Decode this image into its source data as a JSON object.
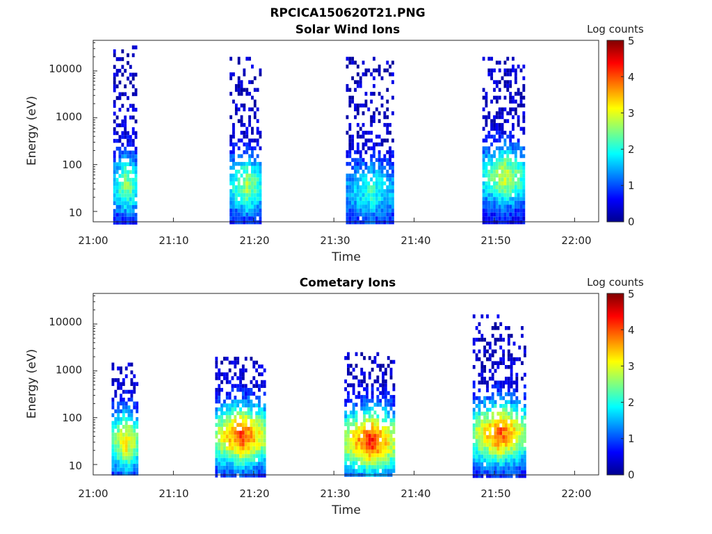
{
  "figure_title": "RPCICA150620T21.PNG",
  "colorbar": {
    "title": "Log counts",
    "ticks": [
      "0",
      "1",
      "2",
      "3",
      "4",
      "5"
    ],
    "colormap": "jet"
  },
  "chart_data": [
    {
      "type": "heatmap",
      "title": "Solar Wind Ions",
      "xlabel": "Time",
      "ylabel": "Energy (eV)",
      "xticks": [
        "21:00",
        "21:10",
        "21:20",
        "21:30",
        "21:40",
        "21:50",
        "22:00"
      ],
      "yticks": [
        "10",
        "100",
        "1000",
        "10000"
      ],
      "yscale": "log",
      "xlim_minutes": [
        0,
        63
      ],
      "ylim": [
        6,
        45000
      ],
      "clim": [
        0,
        5
      ],
      "colorbar_title": "Log counts",
      "bursts": [
        {
          "start_min": 2.5,
          "end_min": 5.5,
          "emin": 6,
          "emax": 35000,
          "peak": 2.3,
          "core_energy": 40
        },
        {
          "start_min": 17.0,
          "end_min": 21.0,
          "emin": 6,
          "emax": 20000,
          "peak": 2.4,
          "core_energy": 40
        },
        {
          "start_min": 31.5,
          "end_min": 37.5,
          "emin": 6,
          "emax": 20000,
          "peak": 1.8,
          "core_energy": 30
        },
        {
          "start_min": 48.5,
          "end_min": 53.8,
          "emin": 6,
          "emax": 20000,
          "peak": 2.6,
          "core_energy": 60
        }
      ]
    },
    {
      "type": "heatmap",
      "title": "Cometary Ions",
      "xlabel": "Time",
      "ylabel": "Energy (eV)",
      "xticks": [
        "21:00",
        "21:10",
        "21:20",
        "21:30",
        "21:40",
        "21:50",
        "22:00"
      ],
      "yticks": [
        "10",
        "100",
        "1000",
        "10000"
      ],
      "yscale": "log",
      "xlim_minutes": [
        0,
        63
      ],
      "ylim": [
        6,
        45000
      ],
      "clim": [
        0,
        5
      ],
      "colorbar_title": "Log counts",
      "bursts": [
        {
          "start_min": 2.3,
          "end_min": 5.6,
          "emin": 6,
          "emax": 1500,
          "peak": 3.0,
          "core_energy": 35
        },
        {
          "start_min": 15.2,
          "end_min": 21.5,
          "emin": 6,
          "emax": 2000,
          "peak": 3.8,
          "core_energy": 45
        },
        {
          "start_min": 31.3,
          "end_min": 37.5,
          "emin": 6,
          "emax": 2500,
          "peak": 4.0,
          "core_energy": 35
        },
        {
          "start_min": 47.3,
          "end_min": 53.8,
          "emin": 6,
          "emax": 16000,
          "peak": 3.7,
          "core_energy": 50
        }
      ]
    }
  ]
}
